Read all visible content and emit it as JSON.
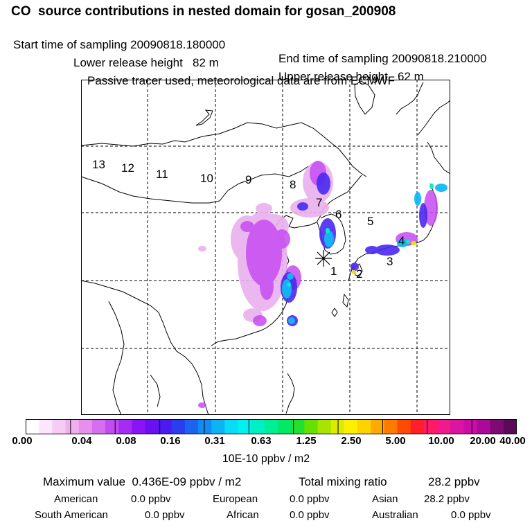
{
  "header": {
    "title": "CO  source contributions in nested domain for gosan_200908",
    "start_label": "Start time of sampling 20090818.180000",
    "end_label": "End time of sampling 20090818.210000",
    "lower_release": "Lower release height   82 m",
    "upper_release": "Upper release height   62 m",
    "tracer_note": "Passive tracer used, meteorological data are from ECMWF"
  },
  "map": {
    "region_labels": [
      "13",
      "12",
      "11",
      "10",
      "9",
      "8",
      "7",
      "6",
      "5",
      "4",
      "3",
      "2",
      "1"
    ]
  },
  "colorbar": {
    "tick_labels": [
      "0.00",
      "0.04",
      "0.08",
      "0.16",
      "0.31",
      "0.63",
      "1.25",
      "2.50",
      "5.00",
      "10.00",
      "20.00",
      "40.00"
    ],
    "units": "10E-10 ppbv / m2",
    "colors": [
      "#ffffff",
      "#fbe6fb",
      "#f6ccf6",
      "#f0b0f0",
      "#e690ee",
      "#d66ef0",
      "#c24cf2",
      "#a62cf4",
      "#8a14f4",
      "#6a10f2",
      "#4a1af0",
      "#2a3ef0",
      "#1a64f0",
      "#108cf2",
      "#0cb4f4",
      "#08dcf8",
      "#00f2ee",
      "#00f0c6",
      "#00ee96",
      "#00ea66",
      "#22e030",
      "#66e000",
      "#a8e400",
      "#dcec00",
      "#fff000",
      "#ffd200",
      "#ffaa00",
      "#ff7a00",
      "#ff4a00",
      "#ff1e2a",
      "#ff1a66",
      "#f01a8e",
      "#dc14a4",
      "#c80ea6",
      "#aa0a96",
      "#800a74",
      "#5a0a56"
    ]
  },
  "summary": {
    "maximum": "Maximum value  0.436E-09 ppbv / m2",
    "total_label": "Total mixing ratio",
    "total_value": "28.2 ppbv",
    "american_label": "American",
    "american_value": "0.0 ppbv",
    "european_label": "European",
    "european_value": "0.0 ppbv",
    "asian_label": "Asian",
    "asian_value": "28.2 ppbv",
    "south_american_label": "South American",
    "south_american_value": "0.0 ppbv",
    "african_label": "African",
    "african_value": "0.0 ppbv",
    "australian_label": "Australian",
    "australian_value": "0.0 ppbv"
  }
}
